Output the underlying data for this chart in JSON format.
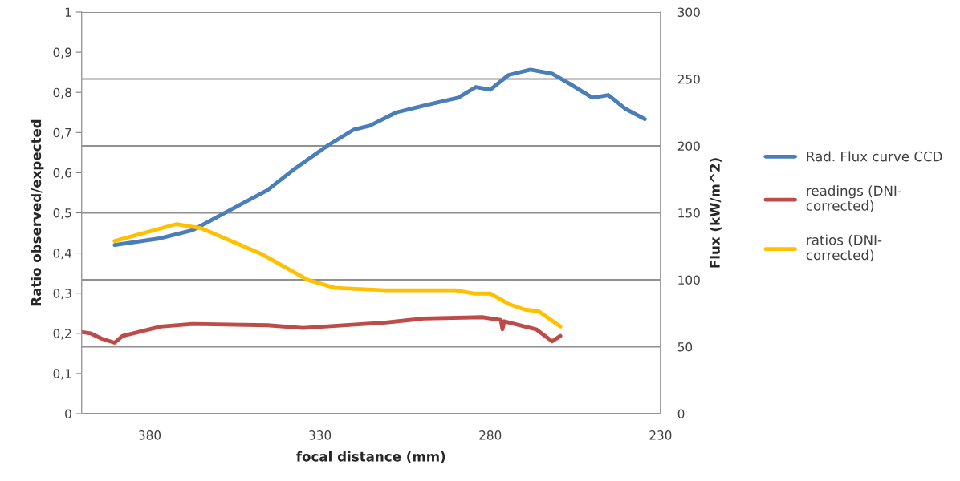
{
  "chart_data": {
    "type": "line",
    "xlabel": "focal distance (mm)",
    "ylabel": "Ratio observed/expected",
    "y2label": "Flux (kW/m^2)",
    "xlim": [
      400,
      230
    ],
    "xticks": [
      380,
      330,
      280,
      230
    ],
    "ylim": [
      0,
      1
    ],
    "yticks": [
      0,
      {
        "value": 0.1,
        "label": "0,1"
      },
      {
        "value": 0.2,
        "label": "0,2"
      },
      {
        "value": 0.3,
        "label": "0,3"
      },
      {
        "value": 0.4,
        "label": "0,4"
      },
      {
        "value": 0.5,
        "label": "0,5"
      },
      {
        "value": 0.6,
        "label": "0,6"
      },
      {
        "value": 0.7,
        "label": "0,7"
      },
      {
        "value": 0.8,
        "label": "0,8"
      },
      {
        "value": 0.9,
        "label": "0,9"
      },
      1
    ],
    "y2lim": [
      0,
      300
    ],
    "y2ticks": [
      0,
      50,
      100,
      150,
      200,
      250,
      300
    ],
    "grid": "y2",
    "legend": "right",
    "marker": "none",
    "line_style": "solid",
    "series": [
      {
        "name": "Rad. Flux curve CCD",
        "color": "#4a7ebb",
        "axis": "y2",
        "x": [
          390.3,
          376.8,
          367.4,
          357.2,
          345.4,
          337.4,
          327.9,
          320.2,
          315.4,
          307.6,
          299.6,
          289.4,
          284.2,
          280.0,
          274.6,
          268.2,
          261.8,
          256.4,
          250.0,
          245.3,
          240.5,
          234.6
        ],
        "values": [
          126,
          131,
          137,
          151,
          167,
          183,
          200,
          212,
          215,
          225,
          230,
          236,
          244,
          242,
          253,
          257,
          254,
          246,
          236,
          238,
          228,
          220
        ]
      },
      {
        "name": "readings (DNI-corrected)",
        "color": "#be4b48",
        "axis": "y2",
        "x": [
          400,
          397.4,
          394.1,
          390.3,
          388.0,
          376.8,
          367.4,
          345.4,
          335.0,
          310.7,
          299.6,
          282.4,
          276.9,
          276.4,
          275.9,
          266.5,
          261.8,
          259.4
        ],
        "values": [
          61,
          60,
          56,
          53,
          58,
          65,
          67,
          66,
          64,
          68,
          71,
          72,
          70,
          63,
          69,
          63,
          54,
          58
        ]
      },
      {
        "name": "ratios (DNI-corrected)",
        "color": "#ffc000",
        "axis": "y",
        "x": [
          390.3,
          372.1,
          365.0,
          346.8,
          333.6,
          325.6,
          310.7,
          290.2,
          284.7,
          280.0,
          274.6,
          269.8,
          265.8,
          259.4
        ],
        "values": [
          0.43,
          0.472,
          0.462,
          0.396,
          0.333,
          0.313,
          0.307,
          0.307,
          0.299,
          0.299,
          0.273,
          0.259,
          0.255,
          0.217
        ]
      }
    ]
  }
}
